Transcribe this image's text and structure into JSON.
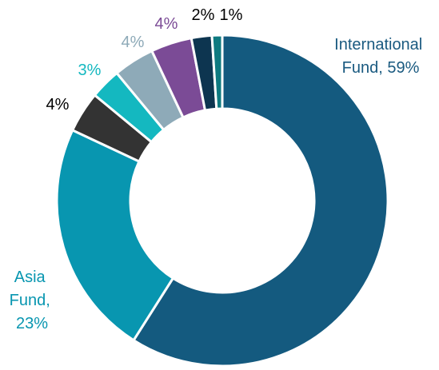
{
  "chart_data": {
    "type": "donut",
    "categories": [
      null,
      null,
      null,
      null,
      null,
      null,
      null,
      null
    ],
    "values": [
      59,
      23,
      4,
      3,
      4,
      4,
      2,
      1
    ],
    "value_labels": [
      "International Fund, 59%",
      "Asia Fund, 23%",
      "4%",
      "3%",
      "4%",
      "4%",
      "2%",
      "1%"
    ],
    "colors": [
      "#145a7f",
      "#0896b0",
      "#333333",
      "#14b8c0",
      "#8eaab8",
      "#7b4b96",
      "#0d3550",
      "#0e7a80"
    ],
    "label_colors": [
      "#1a5a80",
      "#0896b0",
      "#000000",
      "#14b8c0",
      "#8eaab8",
      "#7b4b96",
      "#000000",
      "#000000"
    ]
  }
}
